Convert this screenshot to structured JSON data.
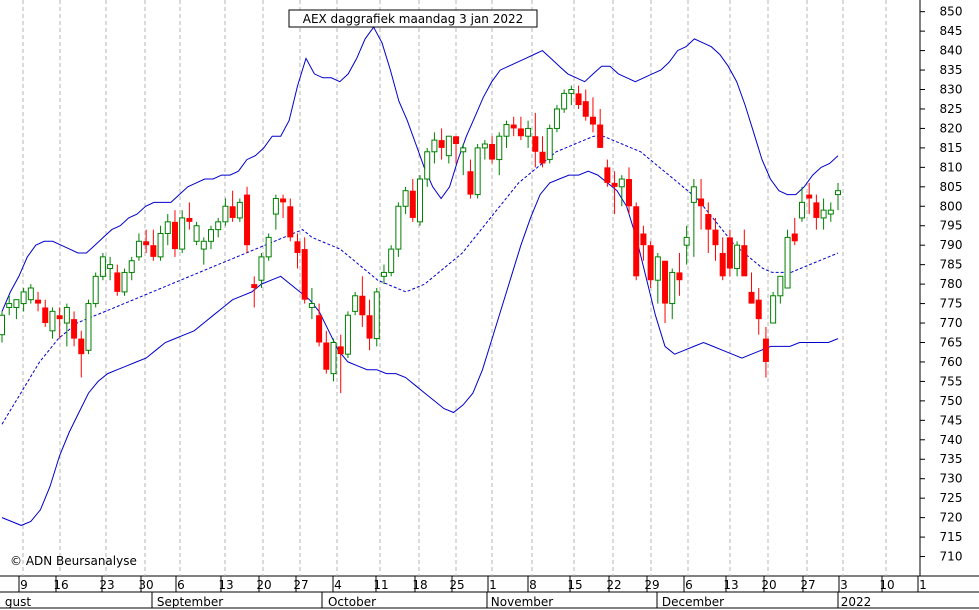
{
  "chart_data": {
    "type": "candlestick",
    "title": "AEX daggrafiek maandag 3 jan 2022",
    "copyright": "© ADN Beursanalyse",
    "ylim": [
      705,
      853
    ],
    "yticks": [
      710,
      715,
      720,
      725,
      730,
      735,
      740,
      745,
      750,
      755,
      760,
      765,
      770,
      775,
      780,
      785,
      790,
      795,
      800,
      805,
      810,
      815,
      820,
      825,
      830,
      835,
      840,
      845,
      850
    ],
    "x_tick_labels": [
      "9",
      "16",
      "23",
      "30",
      "6",
      "13",
      "20",
      "27",
      "4",
      "11",
      "18",
      "25",
      "1",
      "8",
      "15",
      "22",
      "29",
      "6",
      "13",
      "20",
      "27",
      "3",
      "10",
      "1"
    ],
    "months": [
      "gust",
      "September",
      "October",
      "November",
      "December",
      "2022"
    ],
    "colors": {
      "up": "#008000",
      "down": "#ff0000",
      "band": "#0000cc",
      "grid": "#b4b4b4"
    },
    "series": [
      {
        "name": "candles",
        "values": [
          [
            767,
            773,
            765,
            772
          ],
          [
            774,
            777,
            772,
            775
          ],
          [
            774,
            776,
            771,
            776
          ],
          [
            775,
            779,
            773,
            778
          ],
          [
            776,
            780,
            775,
            779
          ],
          [
            776,
            778,
            773,
            775
          ],
          [
            774,
            776,
            769,
            770
          ],
          [
            768,
            774,
            766,
            773
          ],
          [
            772,
            774,
            766,
            771
          ],
          [
            770,
            775,
            764,
            774
          ],
          [
            771,
            773,
            764,
            766
          ],
          [
            766,
            768,
            756,
            762
          ],
          [
            763,
            776,
            762,
            775
          ],
          [
            775,
            783,
            774,
            782
          ],
          [
            782,
            788,
            781,
            787
          ],
          [
            784,
            787,
            781,
            785
          ],
          [
            783,
            785,
            777,
            778
          ],
          [
            778,
            784,
            777,
            783
          ],
          [
            783,
            787,
            781,
            786
          ],
          [
            787,
            793,
            786,
            791
          ],
          [
            791,
            794,
            788,
            790
          ],
          [
            790,
            794,
            786,
            787
          ],
          [
            787,
            795,
            786,
            793
          ],
          [
            793,
            798,
            790,
            796
          ],
          [
            796,
            799,
            787,
            789
          ],
          [
            789,
            799,
            788,
            797
          ],
          [
            797,
            801,
            794,
            796
          ],
          [
            791,
            796,
            790,
            795
          ],
          [
            789,
            792,
            785,
            791
          ],
          [
            791,
            795,
            789,
            794
          ],
          [
            794,
            797,
            792,
            796
          ],
          [
            796,
            802,
            795,
            800
          ],
          [
            800,
            804,
            796,
            797
          ],
          [
            797,
            802,
            796,
            801
          ],
          [
            803,
            805,
            788,
            790
          ],
          [
            780,
            782,
            774,
            779
          ],
          [
            781,
            788,
            779,
            787
          ],
          [
            787,
            793,
            786,
            792
          ],
          [
            798,
            803,
            794,
            802
          ],
          [
            802,
            803,
            797,
            801
          ],
          [
            800,
            802,
            791,
            792
          ],
          [
            791,
            793,
            784,
            788
          ],
          [
            789,
            792,
            775,
            776
          ],
          [
            774,
            779,
            771,
            775
          ],
          [
            772,
            775,
            764,
            765
          ],
          [
            765,
            768,
            757,
            758
          ],
          [
            757,
            766,
            755,
            765
          ],
          [
            764,
            767,
            752,
            762
          ],
          [
            762,
            773,
            761,
            772
          ],
          [
            773,
            778,
            772,
            777
          ],
          [
            777,
            782,
            769,
            772
          ],
          [
            772,
            776,
            763,
            766
          ],
          [
            766,
            779,
            764,
            778
          ],
          [
            782,
            785,
            780,
            783
          ],
          [
            783,
            790,
            782,
            789
          ],
          [
            789,
            801,
            787,
            800
          ],
          [
            800,
            805,
            798,
            804
          ],
          [
            804,
            807,
            796,
            797
          ],
          [
            796,
            808,
            795,
            807
          ],
          [
            807,
            815,
            805,
            814
          ],
          [
            814,
            819,
            811,
            817
          ],
          [
            817,
            820,
            812,
            815
          ],
          [
            813,
            818,
            811,
            818
          ],
          [
            818,
            817,
            811,
            816
          ],
          [
            814,
            816,
            808,
            815
          ],
          [
            809,
            812,
            802,
            803
          ],
          [
            803,
            816,
            802,
            815
          ],
          [
            815,
            817,
            812,
            816
          ],
          [
            816,
            818,
            811,
            812
          ],
          [
            812,
            819,
            808,
            818
          ],
          [
            818,
            822,
            815,
            821
          ],
          [
            821,
            823,
            818,
            820
          ],
          [
            820,
            823,
            817,
            818
          ],
          [
            818,
            822,
            815,
            820
          ],
          [
            818,
            824,
            810,
            814
          ],
          [
            814,
            818,
            810,
            811
          ],
          [
            812,
            821,
            811,
            820
          ],
          [
            820,
            826,
            819,
            825
          ],
          [
            825,
            830,
            824,
            829
          ],
          [
            829,
            831,
            826,
            830
          ],
          [
            829,
            831,
            825,
            826
          ],
          [
            827,
            830,
            822,
            823
          ],
          [
            823,
            828,
            819,
            821
          ],
          [
            821,
            825,
            815,
            815
          ],
          [
            810,
            812,
            805,
            806
          ],
          [
            806,
            809,
            798,
            805
          ],
          [
            805,
            808,
            800,
            807
          ],
          [
            807,
            810,
            798,
            800
          ],
          [
            800,
            801,
            781,
            782
          ],
          [
            793,
            795,
            786,
            790
          ],
          [
            790,
            791,
            779,
            781
          ],
          [
            781,
            788,
            775,
            787
          ],
          [
            786,
            786,
            770,
            775
          ],
          [
            775,
            784,
            771,
            783
          ],
          [
            783,
            788,
            777,
            781
          ],
          [
            790,
            795,
            785,
            792
          ],
          [
            801,
            807,
            787,
            805
          ],
          [
            802,
            807,
            794,
            800
          ],
          [
            798,
            801,
            788,
            794
          ],
          [
            794,
            797,
            786,
            790
          ],
          [
            788,
            792,
            781,
            782
          ],
          [
            792,
            794,
            782,
            784
          ],
          [
            784,
            791,
            782,
            790
          ],
          [
            790,
            794,
            787,
            782
          ],
          [
            778,
            783,
            775,
            775
          ],
          [
            776,
            779,
            767,
            771
          ],
          [
            766,
            769,
            756,
            760
          ],
          [
            770,
            778,
            770,
            777
          ],
          [
            777,
            781,
            775,
            782
          ],
          [
            779,
            794,
            786,
            792
          ],
          [
            793,
            797,
            790,
            791
          ],
          [
            797,
            805,
            796,
            801
          ],
          [
            803,
            806,
            798,
            802
          ],
          [
            801,
            803,
            794,
            797
          ],
          [
            797,
            802,
            794,
            799
          ],
          [
            798,
            801,
            796,
            799
          ],
          [
            803,
            806,
            799,
            804
          ]
        ]
      },
      {
        "name": "upper",
        "values": [
          773,
          778,
          782,
          787,
          790,
          791,
          791,
          790,
          789,
          788,
          788,
          790,
          792,
          794,
          795,
          797,
          798,
          800,
          801,
          801,
          801,
          803,
          805,
          806,
          807,
          807,
          808,
          808,
          809,
          812,
          813,
          815,
          818,
          818,
          822,
          831,
          838,
          834,
          833,
          833,
          832,
          834,
          838,
          843,
          846,
          842,
          835,
          827,
          822,
          816,
          810,
          805,
          802,
          805,
          812,
          818,
          823,
          828,
          832,
          835,
          836,
          837,
          838,
          839,
          840,
          838,
          836,
          834,
          833,
          832,
          834,
          836,
          836,
          834,
          833,
          832,
          833,
          834,
          835,
          837,
          840,
          841,
          843,
          842,
          841,
          839,
          836,
          832,
          826,
          819,
          812,
          807,
          804,
          803,
          803,
          805,
          808,
          810,
          811,
          813
        ]
      },
      {
        "name": "middle",
        "values": [
          744,
          748,
          752,
          756,
          760,
          763,
          766,
          768,
          770,
          771,
          772,
          773,
          774,
          775,
          776,
          777,
          778,
          779,
          780,
          781,
          782,
          783,
          784,
          785,
          786,
          787,
          788,
          789,
          790,
          791,
          792,
          793,
          794,
          792,
          791,
          790,
          789,
          787,
          785,
          783,
          781,
          780,
          779,
          778,
          779,
          780,
          782,
          784,
          786,
          788,
          791,
          794,
          797,
          800,
          803,
          806,
          808,
          810,
          812,
          814,
          815,
          816,
          817,
          818,
          818,
          817,
          816,
          815,
          814,
          812,
          810,
          808,
          806,
          804,
          802,
          799,
          796,
          793,
          790,
          788,
          786,
          784,
          783,
          783,
          783,
          784,
          785,
          786,
          787,
          788
        ]
      },
      {
        "name": "lower",
        "values": [
          720,
          719,
          718,
          719,
          722,
          728,
          736,
          742,
          747,
          752,
          755,
          757,
          758,
          759,
          760,
          761,
          763,
          765,
          766,
          767,
          768,
          770,
          772,
          774,
          776,
          777,
          778,
          780,
          781,
          782,
          780,
          778,
          776,
          773,
          768,
          763,
          760,
          759,
          758,
          758,
          757,
          757,
          756,
          754,
          752,
          750,
          748,
          747,
          749,
          752,
          758,
          766,
          774,
          782,
          790,
          797,
          803,
          806,
          807,
          808,
          808,
          809,
          808,
          806,
          804,
          800,
          792,
          782,
          772,
          764,
          762,
          763,
          764,
          765,
          764,
          763,
          762,
          761,
          762,
          763,
          764,
          764,
          764,
          765,
          765,
          765,
          765,
          766
        ]
      }
    ]
  }
}
